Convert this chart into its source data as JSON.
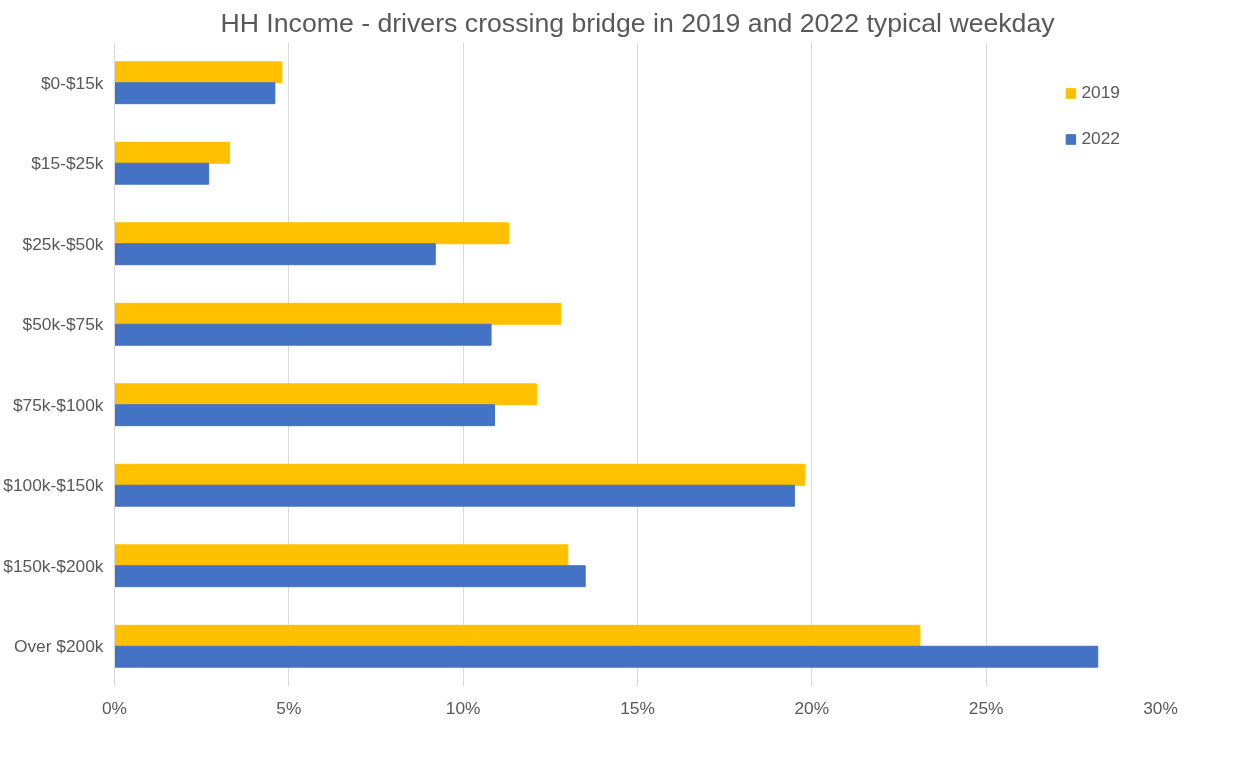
{
  "chart_data": {
    "type": "bar",
    "orientation": "horizontal",
    "title": "HH Income - drivers crossing bridge in 2019 and 2022 typical weekday",
    "categories": [
      "$0-$15k",
      "$15-$25k",
      "$25k-$50k",
      "$50k-$75k",
      "$75k-$100k",
      "$100k-$150k",
      "$150k-$200k",
      "Over $200k"
    ],
    "series": [
      {
        "name": "2019",
        "color": "#ffc000",
        "values": [
          4.8,
          3.3,
          11.3,
          12.8,
          12.1,
          19.8,
          13.0,
          23.1
        ]
      },
      {
        "name": "2022",
        "color": "#4472c4",
        "values": [
          4.6,
          2.7,
          9.2,
          10.8,
          10.9,
          19.5,
          13.5,
          28.2
        ]
      }
    ],
    "xlim": [
      0,
      30
    ],
    "xticks": [
      {
        "value": 0,
        "label": "0%"
      },
      {
        "value": 5,
        "label": "5%"
      },
      {
        "value": 10,
        "label": "10%"
      },
      {
        "value": 15,
        "label": "15%"
      },
      {
        "value": 20,
        "label": "20%"
      },
      {
        "value": 25,
        "label": "25%"
      },
      {
        "value": 30,
        "label": "30%"
      }
    ],
    "grid": "x",
    "legend": "top right"
  }
}
